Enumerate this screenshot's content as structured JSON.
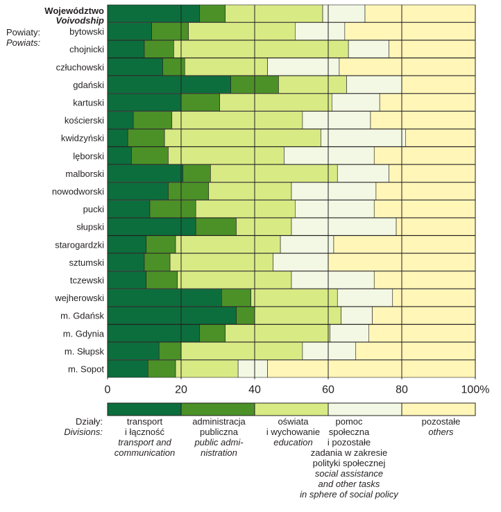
{
  "chart_data": {
    "type": "bar",
    "orientation": "horizontal",
    "stacked": "percent",
    "header": {
      "region_pl": "Województwo",
      "region_en": "Voivodship",
      "powiats_pl": "Powiaty:",
      "powiats_en": "Powiats:"
    },
    "categories": [
      "Województwo",
      "bytowski",
      "chojnicki",
      "człuchowski",
      "gdański",
      "kartuski",
      "kościerski",
      "kwidzyński",
      "lęborski",
      "malborski",
      "nowodworski",
      "pucki",
      "słupski",
      "starogardzki",
      "sztumski",
      "tczewski",
      "wejherowski",
      "m. Gdańsk",
      "m. Gdynia",
      "m. Słupsk",
      "m. Sopot"
    ],
    "series": [
      {
        "name": "transport i łączność",
        "color": "#0d6e3d",
        "values": [
          25,
          12,
          10,
          15,
          33.5,
          20,
          7,
          5.5,
          6.5,
          20.5,
          16.5,
          11.5,
          24,
          10.5,
          10,
          10.5,
          31,
          35,
          25,
          14,
          11
        ]
      },
      {
        "name": "administracja publiczna",
        "color": "#4b9128",
        "values": [
          7,
          10,
          8,
          6,
          13,
          10.5,
          10.5,
          10,
          10,
          7.5,
          11,
          12.5,
          11,
          8,
          7,
          8.5,
          8,
          5,
          7,
          6,
          7.5
        ]
      },
      {
        "name": "oświata i wychowanie",
        "color": "#d8ea84",
        "values": [
          26.5,
          29,
          47.5,
          22.5,
          18.5,
          30.5,
          35.5,
          42.5,
          31.5,
          34.5,
          22.5,
          27,
          15,
          28.5,
          28,
          31,
          23.5,
          23.5,
          28.5,
          33,
          17
        ]
      },
      {
        "name": "pomoc społeczna i pozostałe zadania",
        "color": "#f2f8e3",
        "values": [
          11.5,
          13.5,
          11,
          19.5,
          15,
          13,
          18.5,
          23,
          24.5,
          14,
          23,
          21.5,
          28.5,
          14.5,
          15,
          22.5,
          15,
          8.5,
          10.5,
          14.5,
          8
        ]
      },
      {
        "name": "pozostałe",
        "color": "#fff6b8",
        "values": [
          30,
          35.5,
          23.5,
          37,
          20,
          26,
          28.5,
          19,
          27.5,
          23.5,
          27,
          27.5,
          21.5,
          38.5,
          40,
          27.5,
          22.5,
          28,
          29,
          32.5,
          56.5
        ]
      }
    ],
    "xticks": [
      "0",
      "20",
      "40",
      "60",
      "80",
      "100%"
    ],
    "xlim": [
      0,
      100
    ],
    "grid": true,
    "legend_position": "bottom"
  },
  "legend": {
    "title_pl": "Działy:",
    "title_en": "Divisions:",
    "items": [
      {
        "pl": "transport\ni łączność",
        "en": "transport and\ncommunication",
        "color": "#0d6e3d"
      },
      {
        "pl": "administracja\npubliczna",
        "en": "public admi-\nnistration",
        "color": "#4b9128"
      },
      {
        "pl": "oświata\ni wychowanie",
        "en": "education",
        "color": "#d8ea84"
      },
      {
        "pl": "pomoc\nspołeczna\ni pozostałe\nzadania w zakresie\npolityki społecznej",
        "en": "social assistance\nand other tasks\nin sphere of social policy",
        "color": "#f2f8e3"
      },
      {
        "pl": "pozostałe",
        "en": "others",
        "color": "#fff6b8"
      }
    ]
  }
}
